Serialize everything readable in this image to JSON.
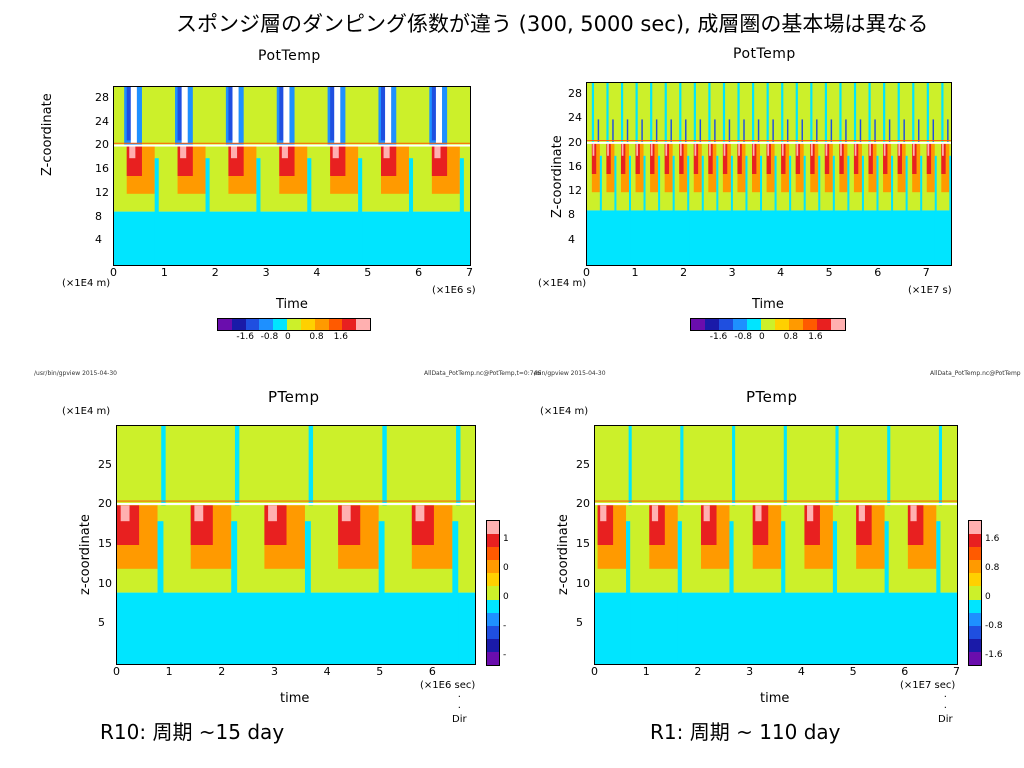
{
  "slide": {
    "title": "スポンジ層のダンピング係数が違う (300, 5000 sec), 成層圏の基本場は異なる",
    "caption_left": "R10: 周期 ~15 day",
    "caption_right": "R1: 周期 ~ 110 day"
  },
  "meta": {
    "path_left": "/usr/bin/gpview  2015-04-30",
    "file_left": "AllData_PotTemp.nc@PotTemp,t=0:7e6",
    "path_right": "/bin/gpview  2015-04-30",
    "file_right": "AllData_PotTemp.nc@PotTemp"
  },
  "colors": [
    "#6a0dad",
    "#1a1aa8",
    "#1f4fe0",
    "#1e90ff",
    "#00e5ff",
    "#ccf02a",
    "#ffd000",
    "#ff9a00",
    "#ff5a00",
    "#e82020",
    "#ffb0b0",
    "#ffffff"
  ],
  "chart_data": [
    {
      "type": "heatmap",
      "title": "PotTemp",
      "xlabel": "Time",
      "ylabel": "Z-coordinate",
      "x_unit": "(×1E6 s)",
      "y_unit": "(×1E4 m)",
      "x_ticks": [
        "0",
        "1",
        "2",
        "3",
        "4",
        "5",
        "6",
        "7"
      ],
      "y_ticks": [
        "4",
        "8",
        "12",
        "16",
        "20",
        "24",
        "28"
      ],
      "xlim": [
        0,
        7
      ],
      "ylim": [
        0,
        30
      ],
      "period": 1.0,
      "first_event": 0.25,
      "colorbar_labels": [
        "-1.6",
        "-0.8",
        "0",
        "0.8",
        "1.6"
      ]
    },
    {
      "type": "heatmap",
      "title": "PotTemp",
      "xlabel": "Time",
      "ylabel": "Z-coordinate",
      "x_unit": "(×1E7 s)",
      "y_unit": "(×1E4 m)",
      "x_ticks": [
        "0",
        "1",
        "2",
        "3",
        "4",
        "5",
        "6",
        "7"
      ],
      "y_ticks": [
        "4",
        "8",
        "12",
        "16",
        "20",
        "24",
        "28"
      ],
      "xlim": [
        0,
        7.5
      ],
      "ylim": [
        0,
        30
      ],
      "period": 0.3,
      "first_event": 0.1,
      "colorbar_labels": [
        "-1.6",
        "-0.8",
        "0",
        "0.8",
        "1.6"
      ]
    },
    {
      "type": "heatmap",
      "title": "PTemp",
      "xlabel": "time",
      "ylabel": "z-coordinate",
      "x_unit": "(×1E6 sec)",
      "y_unit": "(×1E4 m)",
      "x_ticks": [
        "0",
        "1",
        "2",
        "3",
        "4",
        "5",
        "6"
      ],
      "y_ticks": [
        "5",
        "10",
        "15",
        "20",
        "25"
      ],
      "xlim": [
        0,
        6.8
      ],
      "ylim": [
        0,
        30
      ],
      "period": 1.4,
      "first_event": 0.0,
      "colorbar_labels": [
        "1",
        "0",
        "0",
        "-",
        "-"
      ]
    },
    {
      "type": "heatmap",
      "title": "PTemp",
      "xlabel": "time",
      "ylabel": "z-coordinate",
      "x_unit": "(×1E7 sec)",
      "y_unit": "(×1E4 m)",
      "x_ticks": [
        "0",
        "1",
        "2",
        "3",
        "4",
        "5",
        "6",
        "7"
      ],
      "y_ticks": [
        "5",
        "10",
        "15",
        "20",
        "25"
      ],
      "xlim": [
        0,
        7.0
      ],
      "ylim": [
        0,
        30
      ],
      "period": 1.0,
      "first_event": 0.05,
      "colorbar_labels": [
        "1.6",
        "0.8",
        "0",
        "-0.8",
        "-1.6"
      ]
    }
  ],
  "dir_label": "Dir"
}
